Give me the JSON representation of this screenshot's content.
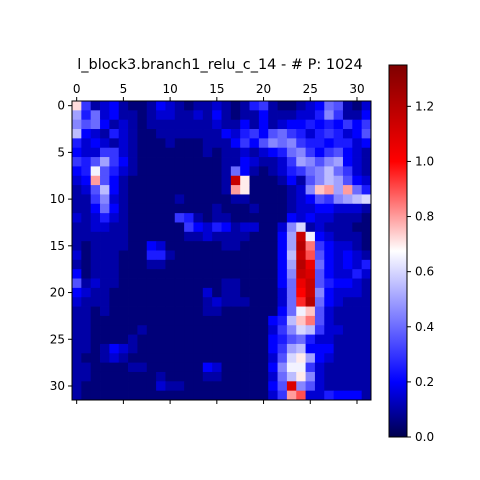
{
  "chart_data": {
    "type": "heatmap",
    "title": "l_block3.branch1_relu_c_14 - # P: 1024",
    "rows": 32,
    "cols": 32,
    "xticks": [
      0,
      5,
      10,
      15,
      20,
      25,
      30
    ],
    "yticks": [
      0,
      5,
      10,
      15,
      20,
      25,
      30
    ],
    "x_axis_position": "top",
    "colormap": "seismic (upper half)",
    "colorbar": {
      "min": 0.0,
      "max": 1.35,
      "ticks": [
        "0.0",
        "0.2",
        "0.4",
        "0.6",
        "0.8",
        "1.0",
        "1.2"
      ],
      "colors": [
        "#00004c",
        "#0000ff",
        "#ffffff",
        "#ff0000",
        "#7f0000"
      ]
    },
    "values": [
      [
        0.72,
        0.3,
        0.1,
        0.15,
        0.2,
        0.1,
        0.05,
        0.05,
        0.1,
        0.2,
        0.15,
        0.1,
        0.05,
        0.1,
        0.1,
        0.15,
        0.1,
        0.05,
        0.1,
        0.25,
        0.3,
        0.1,
        0.05,
        0.05,
        0.1,
        0.15,
        0.2,
        0.4,
        0.35,
        0.1,
        0.05,
        0.15
      ],
      [
        0.5,
        0.25,
        0.4,
        0.15,
        0.2,
        0.1,
        0.1,
        0.05,
        0.1,
        0.15,
        0.15,
        0.1,
        0.1,
        0.15,
        0.1,
        0.2,
        0.1,
        0.05,
        0.1,
        0.1,
        0.2,
        0.1,
        0.1,
        0.1,
        0.15,
        0.15,
        0.25,
        0.45,
        0.3,
        0.1,
        0.1,
        0.2
      ],
      [
        0.45,
        0.35,
        0.4,
        0.2,
        0.1,
        0.15,
        0.1,
        0.05,
        0.1,
        0.1,
        0.1,
        0.1,
        0.1,
        0.1,
        0.1,
        0.15,
        0.1,
        0.1,
        0.2,
        0.1,
        0.2,
        0.1,
        0.15,
        0.2,
        0.2,
        0.25,
        0.2,
        0.25,
        0.2,
        0.3,
        0.2,
        0.3
      ],
      [
        0.55,
        0.2,
        0.15,
        0.1,
        0.25,
        0.15,
        0.1,
        0.05,
        0.05,
        0.1,
        0.1,
        0.1,
        0.1,
        0.1,
        0.1,
        0.1,
        0.2,
        0.15,
        0.25,
        0.3,
        0.2,
        0.35,
        0.4,
        0.3,
        0.25,
        0.15,
        0.25,
        0.3,
        0.25,
        0.15,
        0.2,
        0.35
      ],
      [
        0.25,
        0.15,
        0.2,
        0.15,
        0.1,
        0.15,
        0.1,
        0.05,
        0.05,
        0.05,
        0.1,
        0.05,
        0.05,
        0.05,
        0.1,
        0.1,
        0.1,
        0.2,
        0.3,
        0.2,
        0.35,
        0.45,
        0.4,
        0.45,
        0.3,
        0.25,
        0.25,
        0.2,
        0.25,
        0.25,
        0.15,
        0.2
      ],
      [
        0.2,
        0.15,
        0.15,
        0.3,
        0.3,
        0.15,
        0.1,
        0.05,
        0.05,
        0.05,
        0.05,
        0.05,
        0.05,
        0.05,
        0.1,
        0.05,
        0.1,
        0.1,
        0.15,
        0.1,
        0.15,
        0.2,
        0.25,
        0.4,
        0.45,
        0.3,
        0.2,
        0.3,
        0.35,
        0.2,
        0.15,
        0.1
      ],
      [
        0.3,
        0.25,
        0.35,
        0.5,
        0.3,
        0.2,
        0.1,
        0.05,
        0.05,
        0.05,
        0.05,
        0.05,
        0.05,
        0.05,
        0.05,
        0.05,
        0.1,
        0.1,
        0.2,
        0.15,
        0.1,
        0.1,
        0.15,
        0.3,
        0.5,
        0.45,
        0.35,
        0.45,
        0.5,
        0.2,
        0.15,
        0.1
      ],
      [
        0.2,
        0.25,
        0.65,
        0.35,
        0.25,
        0.15,
        0.1,
        0.05,
        0.05,
        0.05,
        0.05,
        0.05,
        0.05,
        0.05,
        0.05,
        0.05,
        0.1,
        0.4,
        0.2,
        0.1,
        0.05,
        0.1,
        0.15,
        0.25,
        0.3,
        0.4,
        0.45,
        0.55,
        0.4,
        0.3,
        0.15,
        0.1
      ],
      [
        0.15,
        0.2,
        0.8,
        0.35,
        0.2,
        0.1,
        0.05,
        0.05,
        0.05,
        0.05,
        0.05,
        0.05,
        0.05,
        0.05,
        0.05,
        0.05,
        0.1,
        1.15,
        0.7,
        0.05,
        0.05,
        0.05,
        0.1,
        0.2,
        0.1,
        0.35,
        0.45,
        0.55,
        0.5,
        0.35,
        0.2,
        0.15
      ],
      [
        0.1,
        0.15,
        0.35,
        0.55,
        0.2,
        0.1,
        0.05,
        0.05,
        0.05,
        0.05,
        0.05,
        0.05,
        0.05,
        0.05,
        0.05,
        0.05,
        0.1,
        0.8,
        0.7,
        0.05,
        0.05,
        0.05,
        0.05,
        0.1,
        0.15,
        0.45,
        0.75,
        0.8,
        0.5,
        0.8,
        0.4,
        0.25
      ],
      [
        0.1,
        0.1,
        0.3,
        0.45,
        0.15,
        0.1,
        0.05,
        0.05,
        0.05,
        0.05,
        0.05,
        0.1,
        0.05,
        0.05,
        0.05,
        0.05,
        0.05,
        0.1,
        0.1,
        0.05,
        0.05,
        0.05,
        0.05,
        0.1,
        0.15,
        0.2,
        0.35,
        0.3,
        0.45,
        0.5,
        0.55,
        0.6
      ],
      [
        0.1,
        0.1,
        0.2,
        0.4,
        0.2,
        0.1,
        0.05,
        0.05,
        0.05,
        0.05,
        0.05,
        0.05,
        0.05,
        0.05,
        0.05,
        0.1,
        0.05,
        0.05,
        0.05,
        0.1,
        0.05,
        0.05,
        0.05,
        0.1,
        0.15,
        0.15,
        0.2,
        0.2,
        0.15,
        0.15,
        0.15,
        0.1
      ],
      [
        0.15,
        0.1,
        0.15,
        0.25,
        0.15,
        0.1,
        0.05,
        0.05,
        0.05,
        0.05,
        0.05,
        0.3,
        0.25,
        0.1,
        0.05,
        0.1,
        0.1,
        0.05,
        0.05,
        0.05,
        0.05,
        0.05,
        0.05,
        0.2,
        0.15,
        0.2,
        0.15,
        0.15,
        0.1,
        0.1,
        0.1,
        0.05
      ],
      [
        0.1,
        0.1,
        0.15,
        0.15,
        0.1,
        0.1,
        0.05,
        0.05,
        0.05,
        0.05,
        0.05,
        0.05,
        0.3,
        0.2,
        0.15,
        0.25,
        0.2,
        0.1,
        0.15,
        0.15,
        0.05,
        0.05,
        0.15,
        0.45,
        0.6,
        0.1,
        0.15,
        0.1,
        0.1,
        0.1,
        0.05,
        0.05
      ],
      [
        0.1,
        0.1,
        0.1,
        0.1,
        0.1,
        0.1,
        0.05,
        0.05,
        0.05,
        0.05,
        0.05,
        0.05,
        0.1,
        0.1,
        0.15,
        0.1,
        0.1,
        0.1,
        0.1,
        0.05,
        0.05,
        0.05,
        0.2,
        0.5,
        1.15,
        0.65,
        0.2,
        0.15,
        0.1,
        0.1,
        0.1,
        0.05
      ],
      [
        0.1,
        0.05,
        0.1,
        0.1,
        0.1,
        0.1,
        0.05,
        0.05,
        0.2,
        0.15,
        0.05,
        0.05,
        0.05,
        0.05,
        0.05,
        0.05,
        0.1,
        0.1,
        0.05,
        0.05,
        0.05,
        0.05,
        0.2,
        0.5,
        1.2,
        0.85,
        0.3,
        0.2,
        0.15,
        0.15,
        0.1,
        0.05
      ],
      [
        0.15,
        0.05,
        0.1,
        0.1,
        0.1,
        0.05,
        0.05,
        0.05,
        0.25,
        0.25,
        0.1,
        0.05,
        0.05,
        0.05,
        0.05,
        0.05,
        0.05,
        0.05,
        0.05,
        0.05,
        0.05,
        0.05,
        0.2,
        0.55,
        1.15,
        0.9,
        0.35,
        0.2,
        0.15,
        0.2,
        0.15,
        0.1
      ],
      [
        0.1,
        0.05,
        0.1,
        0.1,
        0.1,
        0.05,
        0.05,
        0.05,
        0.1,
        0.1,
        0.05,
        0.05,
        0.05,
        0.05,
        0.05,
        0.05,
        0.05,
        0.05,
        0.05,
        0.05,
        0.05,
        0.05,
        0.2,
        0.5,
        1.2,
        1.05,
        0.4,
        0.2,
        0.15,
        0.2,
        0.15,
        0.25
      ],
      [
        0.2,
        0.05,
        0.1,
        0.1,
        0.1,
        0.05,
        0.05,
        0.05,
        0.05,
        0.05,
        0.05,
        0.05,
        0.05,
        0.05,
        0.05,
        0.05,
        0.05,
        0.05,
        0.05,
        0.05,
        0.05,
        0.05,
        0.2,
        0.45,
        1.15,
        1.1,
        0.35,
        0.2,
        0.15,
        0.15,
        0.25,
        0.15
      ],
      [
        0.35,
        0.1,
        0.15,
        0.1,
        0.1,
        0.05,
        0.05,
        0.05,
        0.05,
        0.05,
        0.05,
        0.05,
        0.05,
        0.05,
        0.05,
        0.05,
        0.1,
        0.1,
        0.05,
        0.05,
        0.05,
        0.05,
        0.2,
        0.4,
        1.05,
        1.15,
        0.35,
        0.25,
        0.2,
        0.2,
        0.15,
        0.1
      ],
      [
        0.2,
        0.15,
        0.1,
        0.1,
        0.05,
        0.05,
        0.05,
        0.05,
        0.05,
        0.05,
        0.05,
        0.05,
        0.05,
        0.05,
        0.15,
        0.05,
        0.1,
        0.1,
        0.05,
        0.05,
        0.05,
        0.05,
        0.15,
        0.4,
        1.0,
        1.15,
        0.45,
        0.2,
        0.15,
        0.15,
        0.15,
        0.1
      ],
      [
        0.15,
        0.1,
        0.1,
        0.1,
        0.05,
        0.05,
        0.05,
        0.05,
        0.05,
        0.05,
        0.05,
        0.05,
        0.05,
        0.05,
        0.1,
        0.15,
        0.1,
        0.1,
        0.1,
        0.05,
        0.05,
        0.05,
        0.15,
        0.4,
        0.95,
        1.2,
        0.4,
        0.2,
        0.15,
        0.1,
        0.1,
        0.1
      ],
      [
        0.1,
        0.1,
        0.05,
        0.1,
        0.05,
        0.05,
        0.05,
        0.05,
        0.05,
        0.05,
        0.05,
        0.05,
        0.05,
        0.05,
        0.1,
        0.1,
        0.05,
        0.05,
        0.05,
        0.05,
        0.05,
        0.05,
        0.2,
        0.4,
        0.65,
        0.75,
        0.35,
        0.15,
        0.1,
        0.1,
        0.1,
        0.1
      ],
      [
        0.1,
        0.1,
        0.05,
        0.05,
        0.05,
        0.05,
        0.05,
        0.05,
        0.05,
        0.05,
        0.05,
        0.05,
        0.05,
        0.05,
        0.05,
        0.05,
        0.05,
        0.05,
        0.05,
        0.05,
        0.05,
        0.2,
        0.25,
        0.55,
        0.75,
        0.85,
        0.35,
        0.15,
        0.1,
        0.1,
        0.1,
        0.1
      ],
      [
        0.1,
        0.1,
        0.05,
        0.05,
        0.05,
        0.05,
        0.05,
        0.1,
        0.05,
        0.05,
        0.05,
        0.05,
        0.05,
        0.05,
        0.05,
        0.05,
        0.05,
        0.05,
        0.05,
        0.05,
        0.05,
        0.15,
        0.3,
        0.45,
        0.6,
        0.55,
        0.3,
        0.15,
        0.15,
        0.1,
        0.1,
        0.1
      ],
      [
        0.1,
        0.1,
        0.05,
        0.05,
        0.05,
        0.05,
        0.1,
        0.05,
        0.05,
        0.05,
        0.05,
        0.05,
        0.05,
        0.05,
        0.05,
        0.05,
        0.05,
        0.05,
        0.05,
        0.05,
        0.05,
        0.2,
        0.25,
        0.35,
        0.4,
        0.25,
        0.15,
        0.15,
        0.1,
        0.1,
        0.1,
        0.1
      ],
      [
        0.1,
        0.1,
        0.05,
        0.1,
        0.2,
        0.15,
        0.1,
        0.05,
        0.05,
        0.05,
        0.05,
        0.05,
        0.05,
        0.05,
        0.05,
        0.05,
        0.05,
        0.05,
        0.05,
        0.05,
        0.05,
        0.2,
        0.3,
        0.5,
        0.55,
        0.2,
        0.2,
        0.2,
        0.1,
        0.1,
        0.1,
        0.1
      ],
      [
        0.1,
        0.05,
        0.05,
        0.1,
        0.15,
        0.1,
        0.05,
        0.05,
        0.05,
        0.05,
        0.05,
        0.05,
        0.05,
        0.05,
        0.05,
        0.05,
        0.05,
        0.05,
        0.05,
        0.05,
        0.05,
        0.15,
        0.35,
        0.6,
        0.7,
        0.5,
        0.2,
        0.15,
        0.1,
        0.1,
        0.1,
        0.1
      ],
      [
        0.1,
        0.1,
        0.05,
        0.05,
        0.05,
        0.05,
        0.1,
        0.1,
        0.05,
        0.05,
        0.05,
        0.05,
        0.05,
        0.05,
        0.2,
        0.15,
        0.05,
        0.05,
        0.05,
        0.05,
        0.05,
        0.2,
        0.45,
        0.65,
        0.65,
        0.3,
        0.15,
        0.1,
        0.1,
        0.1,
        0.1,
        0.1
      ],
      [
        0.1,
        0.1,
        0.05,
        0.05,
        0.05,
        0.05,
        0.05,
        0.05,
        0.05,
        0.1,
        0.05,
        0.05,
        0.05,
        0.05,
        0.1,
        0.1,
        0.05,
        0.05,
        0.05,
        0.05,
        0.05,
        0.15,
        0.4,
        0.55,
        0.7,
        0.45,
        0.15,
        0.1,
        0.1,
        0.1,
        0.1,
        0.1
      ],
      [
        0.1,
        0.05,
        0.05,
        0.05,
        0.05,
        0.05,
        0.05,
        0.05,
        0.05,
        0.15,
        0.1,
        0.1,
        0.05,
        0.05,
        0.05,
        0.05,
        0.05,
        0.05,
        0.05,
        0.05,
        0.05,
        0.2,
        0.35,
        1.1,
        0.45,
        0.35,
        0.15,
        0.1,
        0.1,
        0.1,
        0.1,
        0.1
      ],
      [
        0.1,
        0.05,
        0.05,
        0.05,
        0.05,
        0.05,
        0.05,
        0.05,
        0.05,
        0.05,
        0.05,
        0.05,
        0.05,
        0.05,
        0.05,
        0.05,
        0.05,
        0.05,
        0.05,
        0.05,
        0.05,
        0.15,
        0.3,
        0.8,
        0.9,
        0.15,
        0.15,
        0.25,
        0.2,
        0.2,
        0.2,
        0.1
      ]
    ]
  }
}
